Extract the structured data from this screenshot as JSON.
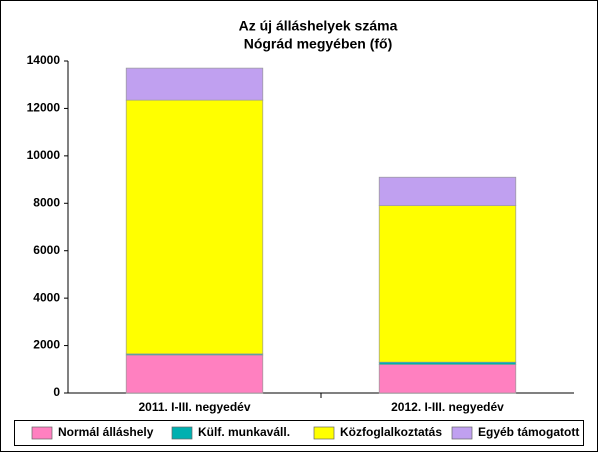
{
  "chart_data": {
    "type": "stacked_bar",
    "title": [
      "Az új álláshelyek száma",
      "Nógrád megyében (fő)"
    ],
    "categories": [
      "2011. I-III. negyedév",
      "2012. I-III. negyedév"
    ],
    "series": [
      {
        "name": "Normál álláshely",
        "color": "#ff80c0",
        "values": [
          1600,
          1200
        ]
      },
      {
        "name": "Külf. munkaváll.",
        "color": "#00b0b0",
        "values": [
          50,
          100
        ]
      },
      {
        "name": "Közfoglalkoztatás",
        "color": "#ffff00",
        "values": [
          10700,
          6600
        ]
      },
      {
        "name": "Egyéb támogatott",
        "color": "#c0a0f0",
        "values": [
          1350,
          1200
        ]
      }
    ],
    "ylim": [
      0,
      14000
    ],
    "yticks": [
      0,
      2000,
      4000,
      6000,
      8000,
      10000,
      12000,
      14000
    ],
    "grid": false,
    "legend": "bottom"
  }
}
